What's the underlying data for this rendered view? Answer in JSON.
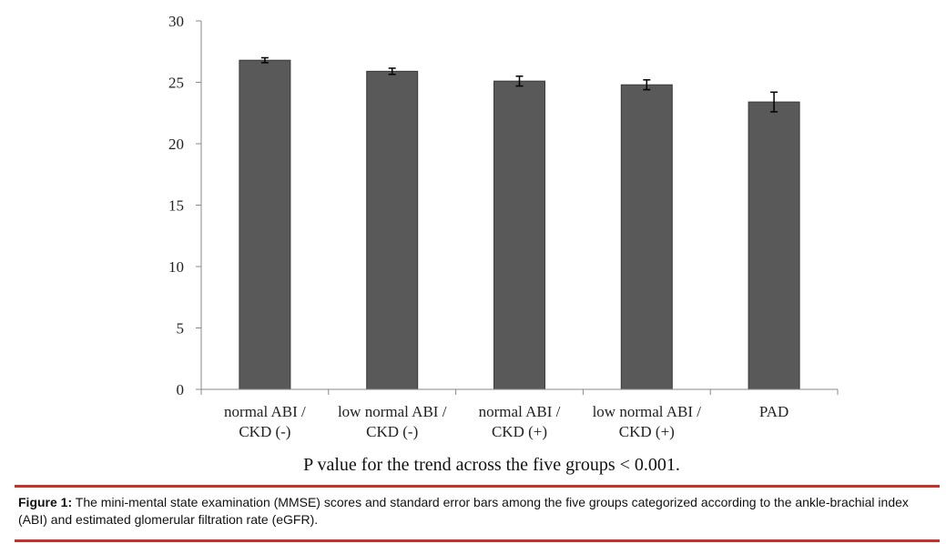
{
  "chart_data": {
    "type": "bar",
    "categories": [
      [
        "normal ABI /",
        "CKD (-)"
      ],
      [
        "low normal ABI /",
        "CKD (-)"
      ],
      [
        "normal ABI /",
        "CKD (+)"
      ],
      [
        "low normal ABI /",
        "CKD (+)"
      ],
      [
        "PAD"
      ]
    ],
    "values": [
      26.8,
      25.9,
      25.1,
      24.8,
      23.4
    ],
    "errors": [
      0.2,
      0.25,
      0.4,
      0.4,
      0.8
    ],
    "ylim": [
      0,
      30
    ],
    "yticks": [
      "0",
      "5",
      "10",
      "15",
      "20",
      "25",
      "30"
    ],
    "annotation": "P value for the trend across the five groups < 0.001.",
    "bar_color": "#595959",
    "grid": false
  },
  "caption": {
    "label": "Figure 1:",
    "text": "The mini-mental state examination (MMSE) scores and standard error bars among the five groups categorized according to the ankle-brachial index (ABI) and estimated glomerular filtration rate (eGFR)."
  },
  "colors": {
    "rule": "#c8312b"
  }
}
